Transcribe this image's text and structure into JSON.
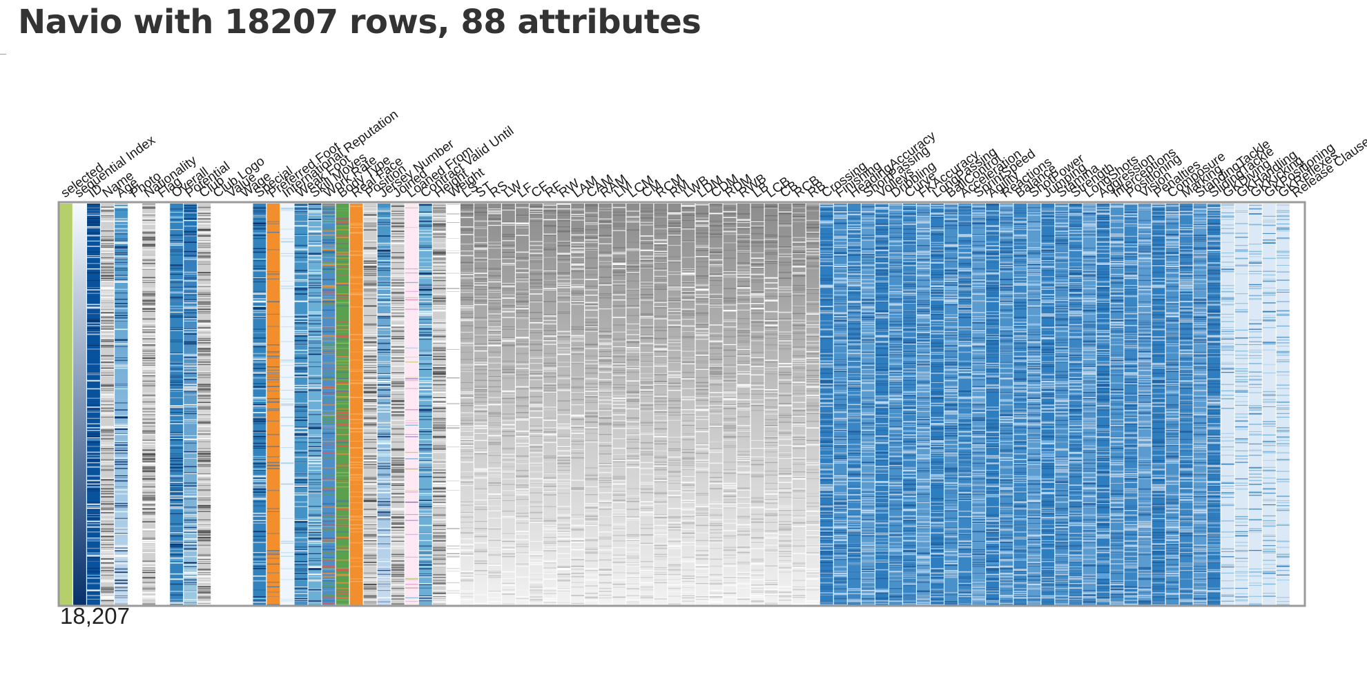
{
  "title": "Navio with 18207 rows, 88 attributes",
  "row_count_label": "18,207",
  "attributes": [
    {
      "name": "selected",
      "type": "selected"
    },
    {
      "name": "sequential Index",
      "type": "gradient",
      "color": "#08519c"
    },
    {
      "name": "ID",
      "type": "seq",
      "color": "#08519c"
    },
    {
      "name": "Name",
      "type": "gray"
    },
    {
      "name": "Age",
      "type": "seq",
      "color": "#6baed6"
    },
    {
      "name": "Photo",
      "type": "white"
    },
    {
      "name": "Nationality",
      "type": "gray"
    },
    {
      "name": "Flag",
      "type": "white"
    },
    {
      "name": "Overall",
      "type": "seq",
      "color": "#3182bd"
    },
    {
      "name": "Potential",
      "type": "seq",
      "color": "#4292c6"
    },
    {
      "name": "Club",
      "type": "gray"
    },
    {
      "name": "Club Logo",
      "type": "white"
    },
    {
      "name": "Value",
      "type": "white"
    },
    {
      "name": "Wage",
      "type": "white"
    },
    {
      "name": "Special",
      "type": "seq",
      "color": "#3182bd"
    },
    {
      "name": "Preferred Foot",
      "type": "orange"
    },
    {
      "name": "International Reputation",
      "type": "pale"
    },
    {
      "name": "Weak Foot",
      "type": "seq",
      "color": "#4292c6"
    },
    {
      "name": "Skill Moves",
      "type": "seq",
      "color": "#6baed6"
    },
    {
      "name": "Work Rate",
      "type": "cat"
    },
    {
      "name": "Body Type",
      "type": "cat2"
    },
    {
      "name": "Real Face",
      "type": "orange"
    },
    {
      "name": "Position",
      "type": "gray"
    },
    {
      "name": "Jersey Number",
      "type": "seq",
      "color": "#9ecae1"
    },
    {
      "name": "Joined",
      "type": "gray"
    },
    {
      "name": "Loaned From",
      "type": "pink"
    },
    {
      "name": "Contract Valid Until",
      "type": "seq",
      "color": "#6baed6"
    },
    {
      "name": "Height",
      "type": "gray"
    },
    {
      "name": "Weight",
      "type": "white"
    },
    {
      "name": "LS",
      "type": "lgray"
    },
    {
      "name": "ST",
      "type": "lgray"
    },
    {
      "name": "RS",
      "type": "lgray"
    },
    {
      "name": "LW",
      "type": "lgray"
    },
    {
      "name": "LF",
      "type": "lgray"
    },
    {
      "name": "CF",
      "type": "lgray"
    },
    {
      "name": "RF",
      "type": "lgray"
    },
    {
      "name": "RW",
      "type": "lgray"
    },
    {
      "name": "LAM",
      "type": "lgray"
    },
    {
      "name": "CAM",
      "type": "lgray"
    },
    {
      "name": "RAM",
      "type": "lgray"
    },
    {
      "name": "LM",
      "type": "lgray"
    },
    {
      "name": "LCM",
      "type": "lgray"
    },
    {
      "name": "CM",
      "type": "lgray"
    },
    {
      "name": "RCM",
      "type": "lgray"
    },
    {
      "name": "RM",
      "type": "lgray"
    },
    {
      "name": "LWB",
      "type": "lgray"
    },
    {
      "name": "LDM",
      "type": "lgray"
    },
    {
      "name": "CDM",
      "type": "lgray"
    },
    {
      "name": "RDM",
      "type": "lgray"
    },
    {
      "name": "RWB",
      "type": "lgray"
    },
    {
      "name": "LB",
      "type": "lgray"
    },
    {
      "name": "LCB",
      "type": "lgray"
    },
    {
      "name": "CB",
      "type": "lgray"
    },
    {
      "name": "RCB",
      "type": "lgray"
    },
    {
      "name": "RB",
      "type": "lgray"
    },
    {
      "name": "Crossing",
      "type": "blue"
    },
    {
      "name": "Finishing",
      "type": "blue"
    },
    {
      "name": "HeadingAccuracy",
      "type": "blue"
    },
    {
      "name": "ShortPassing",
      "type": "blue"
    },
    {
      "name": "Volleys",
      "type": "blue"
    },
    {
      "name": "Dribbling",
      "type": "blue"
    },
    {
      "name": "Curve",
      "type": "blue"
    },
    {
      "name": "FKAccuracy",
      "type": "blue"
    },
    {
      "name": "LongPassing",
      "type": "blue"
    },
    {
      "name": "BallControl",
      "type": "blue"
    },
    {
      "name": "Acceleration",
      "type": "blue"
    },
    {
      "name": "SprintSpeed",
      "type": "blue"
    },
    {
      "name": "Agility",
      "type": "blue"
    },
    {
      "name": "Reactions",
      "type": "blue"
    },
    {
      "name": "Balance",
      "type": "blue"
    },
    {
      "name": "ShotPower",
      "type": "blue"
    },
    {
      "name": "Jumping",
      "type": "blue"
    },
    {
      "name": "Stamina",
      "type": "blue"
    },
    {
      "name": "Strength",
      "type": "blue"
    },
    {
      "name": "LongShots",
      "type": "blue"
    },
    {
      "name": "Aggression",
      "type": "blue"
    },
    {
      "name": "Interceptions",
      "type": "blue"
    },
    {
      "name": "Positioning",
      "type": "blue"
    },
    {
      "name": "Vision",
      "type": "blue"
    },
    {
      "name": "Penalties",
      "type": "blue"
    },
    {
      "name": "Composure",
      "type": "blue"
    },
    {
      "name": "Marking",
      "type": "blue"
    },
    {
      "name": "StandingTackle",
      "type": "blue"
    },
    {
      "name": "SlidingTackle",
      "type": "blue"
    },
    {
      "name": "GKDiving",
      "type": "paleblue"
    },
    {
      "name": "GKHandling",
      "type": "paleblue"
    },
    {
      "name": "GKKicking",
      "type": "paleblue"
    },
    {
      "name": "GKPositioning",
      "type": "paleblue"
    },
    {
      "name": "GKReflexes",
      "type": "paleblue"
    },
    {
      "name": "Release Clause",
      "type": "white"
    }
  ]
}
